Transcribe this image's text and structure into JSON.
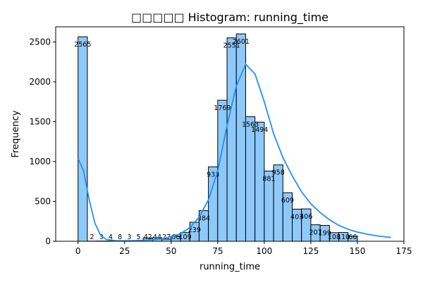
{
  "chart_data": {
    "type": "bar",
    "title": "□□□□□ Histogram: running_time",
    "xlabel": "running_time",
    "ylabel": "Frequency",
    "xlim": [
      -12,
      175
    ],
    "ylim": [
      0,
      2690
    ],
    "xticks": [
      0,
      25,
      50,
      75,
      100,
      125,
      150,
      175
    ],
    "yticks": [
      0,
      500,
      1000,
      1500,
      2000,
      2500
    ],
    "bin_width": 5,
    "bins": [
      {
        "start": 0,
        "end": 5,
        "count": 2565
      },
      {
        "start": 5,
        "end": 10,
        "count": 2
      },
      {
        "start": 10,
        "end": 15,
        "count": 3
      },
      {
        "start": 15,
        "end": 20,
        "count": 4
      },
      {
        "start": 20,
        "end": 25,
        "count": 8
      },
      {
        "start": 25,
        "end": 30,
        "count": 3
      },
      {
        "start": 30,
        "end": 35,
        "count": 5
      },
      {
        "start": 35,
        "end": 40,
        "count": 42
      },
      {
        "start": 40,
        "end": 45,
        "count": 44
      },
      {
        "start": 45,
        "end": 50,
        "count": 27
      },
      {
        "start": 50,
        "end": 55,
        "count": 66
      },
      {
        "start": 55,
        "end": 60,
        "count": 109
      },
      {
        "start": 60,
        "end": 65,
        "count": 239
      },
      {
        "start": 65,
        "end": 70,
        "count": 384
      },
      {
        "start": 70,
        "end": 75,
        "count": 933
      },
      {
        "start": 75,
        "end": 80,
        "count": 1769
      },
      {
        "start": 80,
        "end": 85,
        "count": 2551
      },
      {
        "start": 85,
        "end": 90,
        "count": 2601
      },
      {
        "start": 90,
        "end": 95,
        "count": 1563
      },
      {
        "start": 95,
        "end": 100,
        "count": 1494
      },
      {
        "start": 100,
        "end": 105,
        "count": 881
      },
      {
        "start": 105,
        "end": 110,
        "count": 958
      },
      {
        "start": 110,
        "end": 115,
        "count": 609
      },
      {
        "start": 115,
        "end": 120,
        "count": 403
      },
      {
        "start": 120,
        "end": 125,
        "count": 406
      },
      {
        "start": 125,
        "end": 130,
        "count": 207
      },
      {
        "start": 130,
        "end": 135,
        "count": 199
      },
      {
        "start": 135,
        "end": 140,
        "count": 108
      },
      {
        "start": 140,
        "end": 145,
        "count": 110
      },
      {
        "start": 145,
        "end": 150,
        "count": 66
      }
    ],
    "kde": {
      "x": [
        0,
        3,
        6,
        9,
        12,
        15,
        20,
        25,
        30,
        35,
        40,
        45,
        50,
        55,
        60,
        65,
        70,
        75,
        80,
        85,
        90,
        95,
        100,
        105,
        110,
        115,
        120,
        125,
        130,
        135,
        140,
        145,
        150,
        155,
        160,
        165,
        168
      ],
      "y": [
        1040,
        880,
        520,
        230,
        80,
        25,
        8,
        6,
        8,
        12,
        18,
        30,
        55,
        95,
        170,
        300,
        520,
        880,
        1450,
        1950,
        2220,
        2100,
        1750,
        1350,
        1050,
        820,
        620,
        470,
        360,
        270,
        200,
        150,
        115,
        90,
        70,
        55,
        48
      ]
    },
    "bar_color": "#8ec9fb",
    "bar_edge_color": "#000000",
    "kde_color": "#1e90ff",
    "grid": false,
    "legend": "none"
  }
}
